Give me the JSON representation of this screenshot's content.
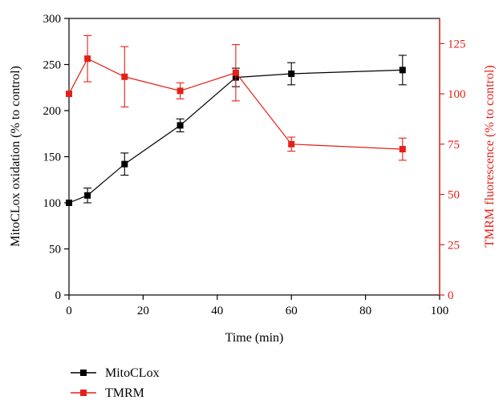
{
  "chart_data": {
    "type": "line",
    "xlabel": "Time (min)",
    "x_ticks": [
      "0",
      "20",
      "40",
      "60",
      "80",
      "100"
    ],
    "xlim": [
      0,
      100
    ],
    "y_left": {
      "label": "MitoCLox oxidation (% to control)",
      "ylim": [
        0,
        300
      ],
      "ticks": [
        "0",
        "50",
        "100",
        "150",
        "200",
        "250",
        "300"
      ],
      "color": "#000000"
    },
    "y_right": {
      "label": "TMRM fluorescence (% to control)",
      "ylim": [
        0,
        137.5
      ],
      "ticks": [
        "0",
        "25",
        "50",
        "75",
        "100",
        "125"
      ],
      "color": "#e32119"
    },
    "grid": false,
    "legend_position": "bottom-left",
    "series": [
      {
        "name": "MitoCLox",
        "axis": "left",
        "color": "#000000",
        "x": [
          0,
          5,
          15,
          30,
          45,
          60,
          90
        ],
        "y": [
          100,
          108,
          142,
          184,
          236,
          240,
          244
        ],
        "err": [
          0,
          8,
          12,
          7,
          10,
          12,
          16
        ]
      },
      {
        "name": "TMRM",
        "axis": "right",
        "color": "#e32119",
        "x": [
          0,
          5,
          15,
          30,
          45,
          60,
          90
        ],
        "y": [
          100,
          117.5,
          108.5,
          101.5,
          110.5,
          75,
          72.5
        ],
        "err": [
          0,
          11.5,
          15,
          4,
          14,
          3.5,
          5.5
        ]
      }
    ]
  }
}
